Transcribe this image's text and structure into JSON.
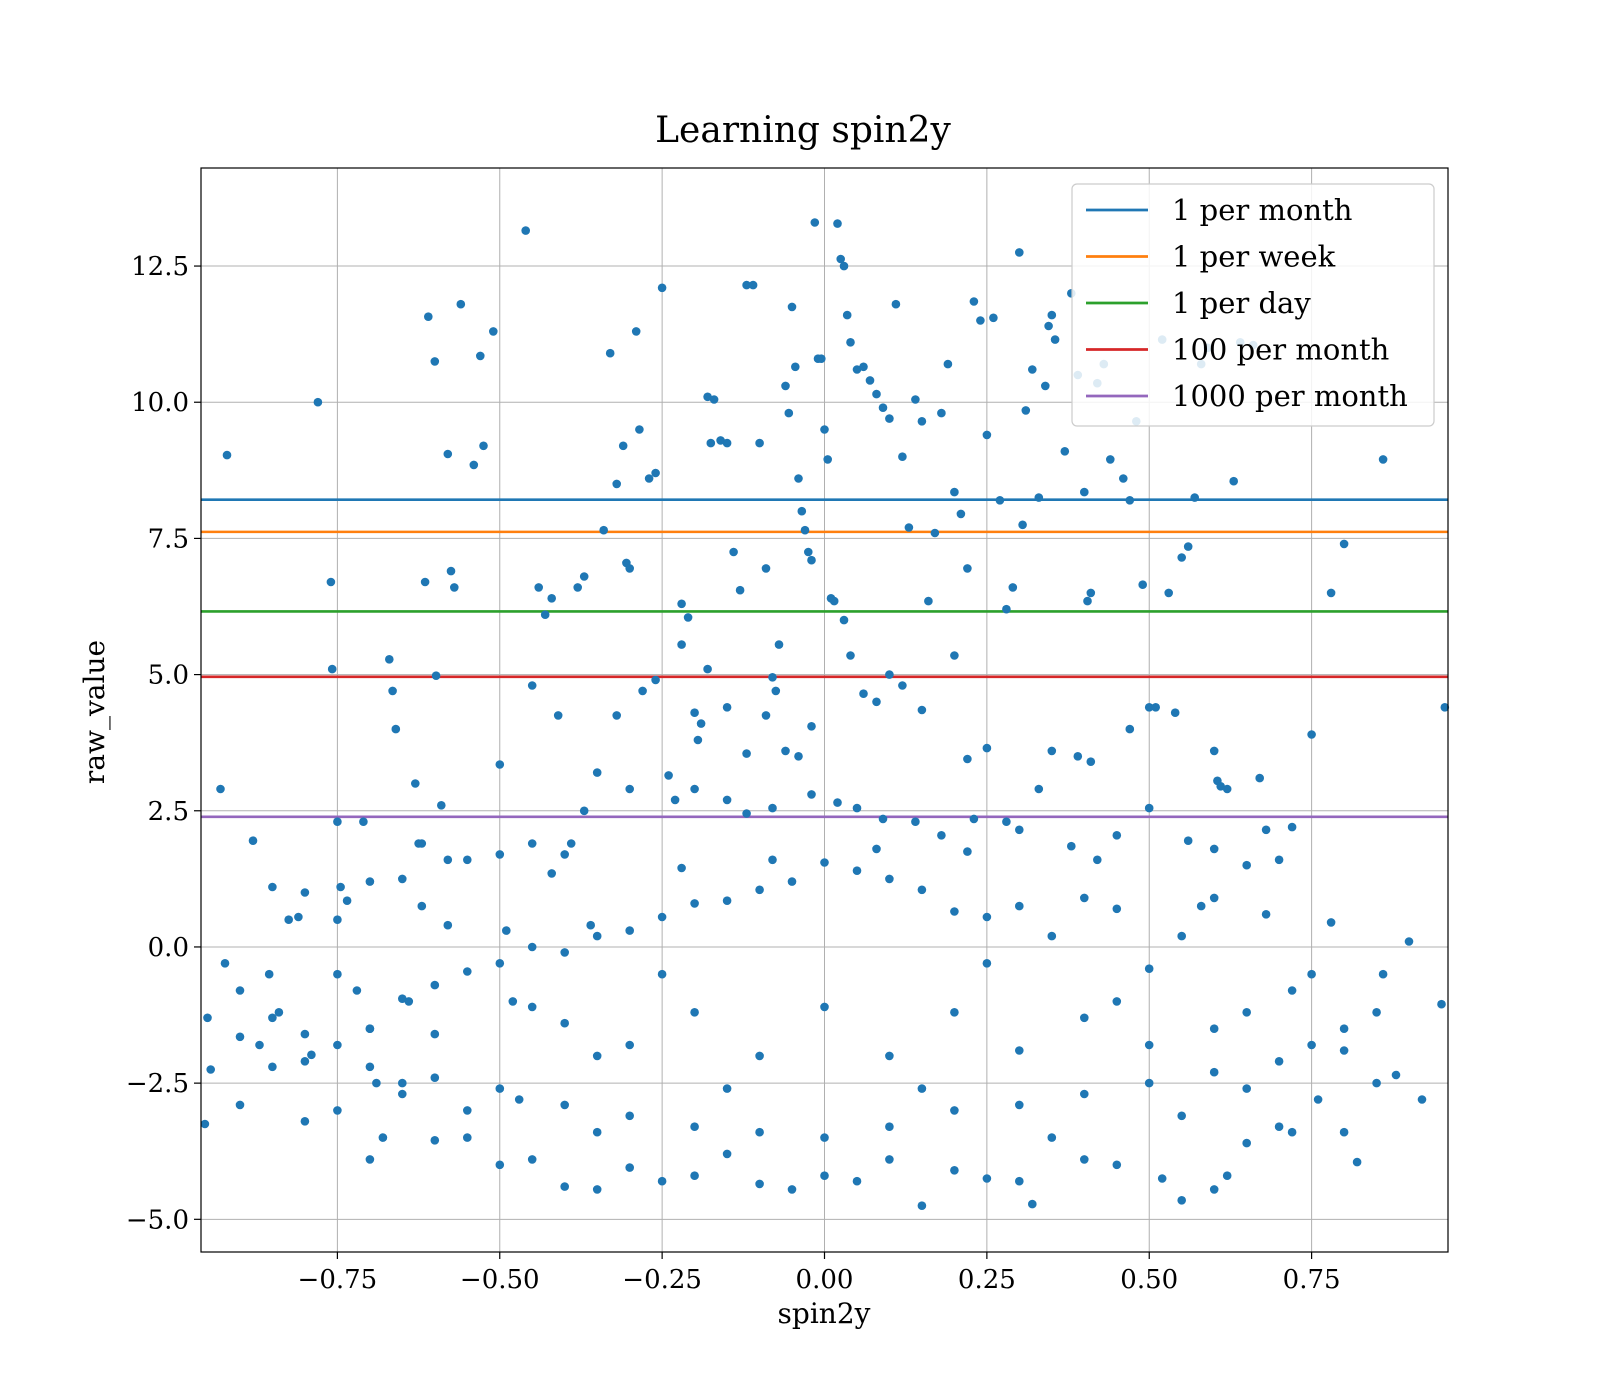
{
  "chart_data": {
    "type": "scatter",
    "title": "Learning spin2y",
    "xlabel": "spin2y",
    "ylabel": "raw_value",
    "xlim": [
      -0.96,
      0.96
    ],
    "ylim": [
      -5.6,
      14.3
    ],
    "xticks": [
      -0.75,
      -0.5,
      -0.25,
      0.0,
      0.25,
      0.5,
      0.75
    ],
    "xtick_labels": [
      "−0.75",
      "−0.50",
      "−0.25",
      "0.00",
      "0.25",
      "0.50",
      "0.75"
    ],
    "yticks": [
      -5.0,
      -2.5,
      0.0,
      2.5,
      5.0,
      7.5,
      10.0,
      12.5
    ],
    "ytick_labels": [
      "−5.0",
      "−2.5",
      "0.0",
      "2.5",
      "5.0",
      "7.5",
      "10.0",
      "12.5"
    ],
    "grid": true,
    "legend_position": "top-right",
    "scatter_color": "#1f77b4",
    "scatter_points": [
      [
        -0.954,
        -3.25
      ],
      [
        -0.945,
        -2.25
      ],
      [
        -0.92,
        9.03
      ],
      [
        -0.923,
        -0.3
      ],
      [
        -0.9,
        -1.65
      ],
      [
        -0.88,
        1.95
      ],
      [
        -0.87,
        -1.8
      ],
      [
        -0.855,
        -0.5
      ],
      [
        -0.84,
        -1.2
      ],
      [
        -0.825,
        0.5
      ],
      [
        -0.81,
        0.55
      ],
      [
        -0.8,
        -1.6
      ],
      [
        -0.79,
        -1.98
      ],
      [
        -0.78,
        10.0
      ],
      [
        -0.76,
        6.7
      ],
      [
        -0.758,
        5.1
      ],
      [
        -0.75,
        2.3
      ],
      [
        -0.745,
        1.1
      ],
      [
        -0.735,
        0.85
      ],
      [
        -0.72,
        -0.8
      ],
      [
        -0.71,
        2.3
      ],
      [
        -0.7,
        -1.5
      ],
      [
        -0.69,
        -2.5
      ],
      [
        -0.68,
        -3.5
      ],
      [
        -0.67,
        5.28
      ],
      [
        -0.665,
        4.7
      ],
      [
        -0.66,
        4.0
      ],
      [
        -0.65,
        1.25
      ],
      [
        -0.64,
        -1.0
      ],
      [
        -0.63,
        3.0
      ],
      [
        -0.625,
        1.9
      ],
      [
        -0.62,
        0.75
      ],
      [
        -0.615,
        6.7
      ],
      [
        -0.61,
        11.57
      ],
      [
        -0.6,
        10.75
      ],
      [
        -0.598,
        4.98
      ],
      [
        -0.59,
        2.6
      ],
      [
        -0.58,
        9.05
      ],
      [
        -0.575,
        6.9
      ],
      [
        -0.57,
        6.6
      ],
      [
        -0.56,
        11.8
      ],
      [
        -0.55,
        1.6
      ],
      [
        -0.54,
        8.85
      ],
      [
        -0.53,
        10.85
      ],
      [
        -0.525,
        9.2
      ],
      [
        -0.51,
        11.3
      ],
      [
        -0.5,
        3.35
      ],
      [
        -0.49,
        0.3
      ],
      [
        -0.48,
        -1.0
      ],
      [
        -0.47,
        -2.8
      ],
      [
        -0.46,
        13.15
      ],
      [
        -0.45,
        4.8
      ],
      [
        -0.44,
        6.6
      ],
      [
        -0.43,
        6.1
      ],
      [
        -0.42,
        6.4
      ],
      [
        -0.41,
        4.25
      ],
      [
        -0.4,
        1.7
      ],
      [
        -0.39,
        1.9
      ],
      [
        -0.38,
        6.6
      ],
      [
        -0.37,
        6.8
      ],
      [
        -0.36,
        0.4
      ],
      [
        -0.35,
        -2.0
      ],
      [
        -0.34,
        7.65
      ],
      [
        -0.33,
        10.9
      ],
      [
        -0.32,
        8.5
      ],
      [
        -0.31,
        9.2
      ],
      [
        -0.305,
        7.05
      ],
      [
        -0.3,
        6.95
      ],
      [
        -0.29,
        11.3
      ],
      [
        -0.285,
        9.5
      ],
      [
        -0.27,
        8.6
      ],
      [
        -0.26,
        8.7
      ],
      [
        -0.25,
        12.1
      ],
      [
        -0.24,
        3.15
      ],
      [
        -0.23,
        2.7
      ],
      [
        -0.22,
        6.3
      ],
      [
        -0.21,
        6.05
      ],
      [
        -0.2,
        4.3
      ],
      [
        -0.195,
        3.8
      ],
      [
        -0.19,
        4.1
      ],
      [
        -0.18,
        10.1
      ],
      [
        -0.175,
        9.25
      ],
      [
        -0.17,
        10.05
      ],
      [
        -0.16,
        9.3
      ],
      [
        -0.15,
        9.25
      ],
      [
        -0.14,
        7.25
      ],
      [
        -0.13,
        6.55
      ],
      [
        -0.12,
        12.15
      ],
      [
        -0.11,
        12.15
      ],
      [
        -0.1,
        9.25
      ],
      [
        -0.09,
        6.95
      ],
      [
        -0.08,
        4.95
      ],
      [
        -0.075,
        4.7
      ],
      [
        -0.07,
        5.55
      ],
      [
        -0.06,
        10.3
      ],
      [
        -0.055,
        9.8
      ],
      [
        -0.05,
        11.75
      ],
      [
        -0.045,
        10.65
      ],
      [
        -0.04,
        8.6
      ],
      [
        -0.035,
        8.0
      ],
      [
        -0.03,
        7.65
      ],
      [
        -0.025,
        7.25
      ],
      [
        -0.02,
        7.1
      ],
      [
        -0.015,
        13.3
      ],
      [
        -0.01,
        10.8
      ],
      [
        -0.005,
        10.8
      ],
      [
        0.0,
        9.5
      ],
      [
        0.005,
        8.95
      ],
      [
        0.01,
        6.4
      ],
      [
        0.015,
        6.35
      ],
      [
        0.02,
        13.28
      ],
      [
        0.025,
        12.63
      ],
      [
        0.03,
        12.5
      ],
      [
        0.035,
        11.6
      ],
      [
        0.04,
        11.1
      ],
      [
        0.05,
        10.6
      ],
      [
        0.06,
        10.65
      ],
      [
        0.07,
        10.4
      ],
      [
        0.08,
        10.15
      ],
      [
        0.09,
        9.9
      ],
      [
        0.1,
        9.7
      ],
      [
        0.11,
        11.8
      ],
      [
        0.12,
        9.0
      ],
      [
        0.13,
        7.7
      ],
      [
        0.14,
        10.05
      ],
      [
        0.15,
        9.65
      ],
      [
        0.16,
        6.35
      ],
      [
        0.17,
        7.6
      ],
      [
        0.18,
        9.8
      ],
      [
        0.19,
        10.7
      ],
      [
        0.2,
        8.35
      ],
      [
        0.21,
        7.95
      ],
      [
        0.22,
        6.95
      ],
      [
        0.23,
        11.85
      ],
      [
        0.24,
        11.5
      ],
      [
        0.25,
        9.4
      ],
      [
        0.26,
        11.55
      ],
      [
        0.27,
        8.2
      ],
      [
        0.28,
        6.2
      ],
      [
        0.29,
        6.6
      ],
      [
        0.3,
        12.75
      ],
      [
        0.305,
        7.75
      ],
      [
        0.31,
        9.85
      ],
      [
        0.32,
        10.6
      ],
      [
        0.33,
        8.25
      ],
      [
        0.34,
        10.3
      ],
      [
        0.345,
        11.4
      ],
      [
        0.35,
        11.6
      ],
      [
        0.355,
        11.15
      ],
      [
        0.37,
        9.1
      ],
      [
        0.38,
        12.0
      ],
      [
        0.39,
        10.5
      ],
      [
        0.4,
        8.35
      ],
      [
        0.405,
        6.35
      ],
      [
        0.41,
        6.5
      ],
      [
        0.42,
        10.35
      ],
      [
        0.43,
        10.7
      ],
      [
        0.44,
        8.95
      ],
      [
        0.46,
        8.6
      ],
      [
        0.47,
        8.2
      ],
      [
        0.48,
        9.65
      ],
      [
        0.49,
        6.65
      ],
      [
        0.5,
        4.4
      ],
      [
        0.51,
        4.4
      ],
      [
        0.52,
        11.15
      ],
      [
        0.53,
        6.5
      ],
      [
        0.54,
        4.3
      ],
      [
        0.55,
        7.15
      ],
      [
        0.56,
        7.35
      ],
      [
        0.57,
        8.25
      ],
      [
        0.58,
        10.7
      ],
      [
        0.59,
        11.0
      ],
      [
        0.6,
        3.6
      ],
      [
        0.605,
        3.05
      ],
      [
        0.61,
        2.95
      ],
      [
        0.62,
        2.9
      ],
      [
        0.63,
        8.55
      ],
      [
        0.64,
        11.1
      ],
      [
        0.66,
        11.05
      ],
      [
        0.67,
        3.1
      ],
      [
        0.72,
        2.2
      ],
      [
        0.75,
        3.9
      ],
      [
        0.78,
        6.5
      ],
      [
        0.8,
        7.4
      ],
      [
        0.86,
        8.95
      ],
      [
        0.955,
        4.4
      ],
      [
        -0.93,
        2.9
      ],
      [
        0.47,
        4.0
      ],
      [
        0.39,
        3.5
      ],
      [
        0.35,
        3.6
      ],
      [
        0.41,
        3.4
      ],
      [
        0.33,
        2.9
      ],
      [
        0.28,
        2.3
      ],
      [
        0.22,
        3.45
      ],
      [
        0.25,
        3.65
      ],
      [
        0.2,
        5.35
      ],
      [
        0.15,
        4.35
      ],
      [
        0.12,
        4.8
      ],
      [
        0.1,
        5.0
      ],
      [
        0.08,
        4.5
      ],
      [
        0.06,
        4.65
      ],
      [
        0.04,
        5.35
      ],
      [
        0.03,
        6.0
      ],
      [
        -0.02,
        4.05
      ],
      [
        -0.04,
        3.5
      ],
      [
        -0.06,
        3.6
      ],
      [
        -0.09,
        4.25
      ],
      [
        -0.12,
        3.55
      ],
      [
        -0.15,
        4.4
      ],
      [
        -0.18,
        5.1
      ],
      [
        -0.22,
        5.55
      ],
      [
        -0.26,
        4.9
      ],
      [
        -0.28,
        4.7
      ],
      [
        -0.32,
        4.25
      ],
      [
        -0.35,
        3.2
      ],
      [
        -0.37,
        2.5
      ],
      [
        -0.3,
        2.9
      ],
      [
        -0.2,
        2.9
      ],
      [
        -0.15,
        2.7
      ],
      [
        -0.12,
        2.45
      ],
      [
        -0.08,
        2.55
      ],
      [
        -0.02,
        2.8
      ],
      [
        0.02,
        2.65
      ],
      [
        0.05,
        2.55
      ],
      [
        0.09,
        2.35
      ],
      [
        0.14,
        2.3
      ],
      [
        0.18,
        2.05
      ],
      [
        0.23,
        2.35
      ],
      [
        0.3,
        2.15
      ],
      [
        0.38,
        1.85
      ],
      [
        0.45,
        2.05
      ],
      [
        0.5,
        2.55
      ],
      [
        0.56,
        1.95
      ],
      [
        0.6,
        1.8
      ],
      [
        0.65,
        1.5
      ],
      [
        0.68,
        2.15
      ],
      [
        -0.5,
        1.7
      ],
      [
        -0.45,
        1.9
      ],
      [
        -0.58,
        1.6
      ],
      [
        -0.62,
        1.9
      ],
      [
        -0.7,
        1.2
      ],
      [
        -0.75,
        0.5
      ],
      [
        -0.85,
        1.1
      ],
      [
        -0.9,
        -0.8
      ],
      [
        -0.9,
        -2.9
      ],
      [
        -0.95,
        -1.3
      ],
      [
        -0.85,
        -2.2
      ],
      [
        -0.8,
        -3.2
      ],
      [
        -0.75,
        -3.0
      ],
      [
        -0.7,
        -3.9
      ],
      [
        -0.65,
        -2.5
      ],
      [
        -0.6,
        -3.55
      ],
      [
        -0.55,
        -3.5
      ],
      [
        -0.5,
        -4.0
      ],
      [
        -0.45,
        -3.9
      ],
      [
        -0.4,
        -4.4
      ],
      [
        -0.35,
        -4.45
      ],
      [
        -0.3,
        -4.05
      ],
      [
        -0.25,
        -4.3
      ],
      [
        -0.2,
        -4.2
      ],
      [
        -0.15,
        -3.8
      ],
      [
        -0.1,
        -4.35
      ],
      [
        -0.05,
        -4.45
      ],
      [
        0.0,
        -4.2
      ],
      [
        0.05,
        -4.3
      ],
      [
        0.1,
        -3.9
      ],
      [
        0.15,
        -4.75
      ],
      [
        0.2,
        -4.1
      ],
      [
        0.25,
        -4.25
      ],
      [
        0.3,
        -4.3
      ],
      [
        0.32,
        -4.72
      ],
      [
        0.4,
        -3.9
      ],
      [
        0.45,
        -4.0
      ],
      [
        0.52,
        -4.25
      ],
      [
        0.55,
        -4.65
      ],
      [
        0.6,
        -4.45
      ],
      [
        0.62,
        -4.2
      ],
      [
        0.65,
        -3.6
      ],
      [
        0.7,
        -3.3
      ],
      [
        0.72,
        -3.4
      ],
      [
        0.76,
        -2.8
      ],
      [
        0.8,
        -3.4
      ],
      [
        0.82,
        -3.95
      ],
      [
        0.85,
        -2.5
      ],
      [
        0.88,
        -2.35
      ],
      [
        0.92,
        -2.8
      ],
      [
        0.95,
        -1.05
      ],
      [
        0.9,
        0.1
      ],
      [
        0.86,
        -0.5
      ],
      [
        0.8,
        -1.5
      ],
      [
        0.78,
        0.45
      ],
      [
        0.75,
        -1.8
      ],
      [
        0.72,
        -0.8
      ],
      [
        0.68,
        0.6
      ],
      [
        0.65,
        -1.2
      ],
      [
        0.6,
        0.9
      ],
      [
        0.55,
        0.2
      ],
      [
        0.5,
        -0.4
      ],
      [
        0.45,
        0.7
      ],
      [
        0.4,
        0.9
      ],
      [
        0.35,
        0.2
      ],
      [
        0.3,
        0.75
      ],
      [
        0.25,
        0.55
      ],
      [
        0.2,
        0.65
      ],
      [
        0.15,
        1.05
      ],
      [
        0.1,
        1.25
      ],
      [
        0.05,
        1.4
      ],
      [
        0.0,
        1.55
      ],
      [
        -0.05,
        1.2
      ],
      [
        -0.1,
        1.05
      ],
      [
        -0.15,
        0.85
      ],
      [
        -0.2,
        0.8
      ],
      [
        -0.25,
        0.55
      ],
      [
        -0.3,
        0.3
      ],
      [
        -0.35,
        0.2
      ],
      [
        -0.4,
        -0.1
      ],
      [
        -0.45,
        0.0
      ],
      [
        -0.5,
        -0.3
      ],
      [
        -0.55,
        -0.45
      ],
      [
        -0.6,
        -0.7
      ],
      [
        -0.65,
        -0.95
      ],
      [
        -0.7,
        -1.5
      ],
      [
        -0.75,
        -1.8
      ],
      [
        -0.8,
        -2.1
      ],
      [
        -0.7,
        -2.2
      ],
      [
        -0.6,
        -2.4
      ],
      [
        -0.5,
        -2.6
      ],
      [
        -0.4,
        -2.9
      ],
      [
        -0.3,
        -3.1
      ],
      [
        -0.2,
        -3.3
      ],
      [
        -0.1,
        -3.4
      ],
      [
        0.0,
        -3.5
      ],
      [
        0.1,
        -3.3
      ],
      [
        0.2,
        -3.0
      ],
      [
        0.3,
        -2.9
      ],
      [
        0.4,
        -2.7
      ],
      [
        0.5,
        -2.5
      ],
      [
        0.6,
        -2.3
      ],
      [
        0.7,
        -2.1
      ],
      [
        0.8,
        -1.9
      ],
      [
        0.6,
        -1.5
      ],
      [
        0.4,
        -1.3
      ],
      [
        0.2,
        -1.2
      ],
      [
        0.0,
        -1.1
      ],
      [
        -0.2,
        -1.2
      ],
      [
        -0.4,
        -1.4
      ],
      [
        -0.6,
        -1.6
      ],
      [
        -0.3,
        -1.8
      ],
      [
        -0.1,
        -2.0
      ],
      [
        0.1,
        -2.0
      ],
      [
        0.3,
        -1.9
      ],
      [
        0.5,
        -1.8
      ],
      [
        0.25,
        -0.3
      ],
      [
        -0.25,
        -0.5
      ],
      [
        0.45,
        -1.0
      ],
      [
        -0.45,
        -1.1
      ],
      [
        0.65,
        -2.6
      ],
      [
        -0.65,
        -2.7
      ],
      [
        0.15,
        -2.6
      ],
      [
        -0.15,
        -2.6
      ],
      [
        0.35,
        -3.5
      ],
      [
        -0.35,
        -3.4
      ],
      [
        0.55,
        -3.1
      ],
      [
        -0.55,
        -3.0
      ],
      [
        0.75,
        -0.5
      ],
      [
        -0.75,
        -0.5
      ],
      [
        0.85,
        -1.2
      ],
      [
        -0.85,
        -1.3
      ],
      [
        0.7,
        1.6
      ],
      [
        -0.8,
        1.0
      ],
      [
        0.58,
        0.75
      ],
      [
        -0.58,
        0.4
      ],
      [
        0.42,
        1.6
      ],
      [
        -0.42,
        1.35
      ],
      [
        0.22,
        1.75
      ],
      [
        -0.22,
        1.45
      ],
      [
        0.08,
        1.8
      ],
      [
        -0.08,
        1.6
      ]
    ],
    "series": [
      {
        "name": "1 per month",
        "y": 8.21,
        "color": "#1f77b4"
      },
      {
        "name": "1 per week",
        "y": 7.62,
        "color": "#ff7f0e"
      },
      {
        "name": "1 per day",
        "y": 6.16,
        "color": "#2ca02c"
      },
      {
        "name": "100 per month",
        "y": 4.96,
        "color": "#d62728"
      },
      {
        "name": "1000 per month",
        "y": 2.39,
        "color": "#9467bd"
      }
    ]
  }
}
